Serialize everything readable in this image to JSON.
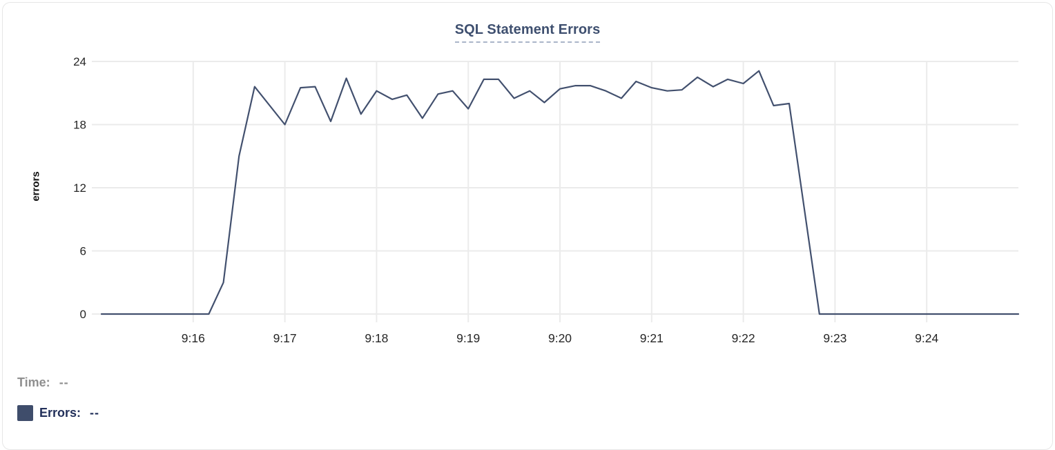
{
  "chart_data": {
    "type": "line",
    "title": "SQL Statement Errors",
    "xlabel": "",
    "ylabel": "errors",
    "x_ticks": [
      "9:16",
      "9:17",
      "9:18",
      "9:19",
      "9:20",
      "9:21",
      "9:22",
      "9:23",
      "9:24"
    ],
    "x_tick_minutes": [
      16,
      17,
      18,
      19,
      20,
      21,
      22,
      23,
      24
    ],
    "y_ticks": [
      0,
      6,
      12,
      18,
      24
    ],
    "xlim_minutes": [
      15,
      25
    ],
    "ylim": [
      0,
      24
    ],
    "grid": true,
    "legend_position": "bottom-left",
    "colors": {
      "line": "#42506e",
      "grid": "#ebebeb",
      "tick_label": "#262626",
      "title": "#3e4f6f",
      "title_underline": "#a9b4c8",
      "swatch": "#3f4d6b",
      "time_text": "#8f8f8f",
      "errors_text": "#22305a"
    },
    "series": [
      {
        "name": "Errors",
        "color": "#42506e",
        "points": [
          [
            15.0,
            0
          ],
          [
            16.17,
            0
          ],
          [
            16.33,
            3
          ],
          [
            16.5,
            15
          ],
          [
            16.67,
            21.6
          ],
          [
            17.0,
            18.0
          ],
          [
            17.17,
            21.5
          ],
          [
            17.33,
            21.6
          ],
          [
            17.5,
            18.3
          ],
          [
            17.67,
            22.4
          ],
          [
            17.83,
            19.0
          ],
          [
            18.0,
            21.2
          ],
          [
            18.17,
            20.4
          ],
          [
            18.33,
            20.8
          ],
          [
            18.5,
            18.6
          ],
          [
            18.67,
            20.9
          ],
          [
            18.83,
            21.2
          ],
          [
            19.0,
            19.5
          ],
          [
            19.17,
            22.3
          ],
          [
            19.33,
            22.3
          ],
          [
            19.5,
            20.5
          ],
          [
            19.67,
            21.2
          ],
          [
            19.83,
            20.1
          ],
          [
            20.0,
            21.4
          ],
          [
            20.17,
            21.7
          ],
          [
            20.33,
            21.7
          ],
          [
            20.5,
            21.2
          ],
          [
            20.67,
            20.5
          ],
          [
            20.83,
            22.1
          ],
          [
            21.0,
            21.5
          ],
          [
            21.17,
            21.2
          ],
          [
            21.33,
            21.3
          ],
          [
            21.5,
            22.5
          ],
          [
            21.67,
            21.6
          ],
          [
            21.83,
            22.3
          ],
          [
            22.0,
            21.9
          ],
          [
            22.17,
            23.1
          ],
          [
            22.33,
            19.8
          ],
          [
            22.5,
            20.0
          ],
          [
            22.83,
            0
          ],
          [
            25.0,
            0
          ]
        ]
      }
    ]
  },
  "tooltip": {
    "time_label": "Time:",
    "time_value": "--",
    "errors_label": "Errors:",
    "errors_value": "--"
  }
}
